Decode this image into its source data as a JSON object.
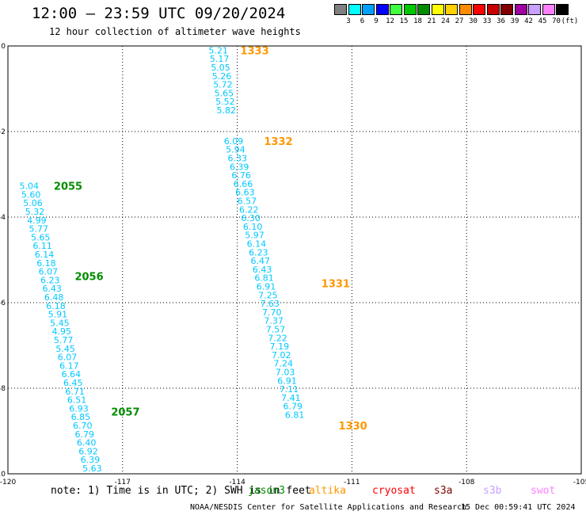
{
  "header": {
    "title": "12:00 — 23:59 UTC 09/20/2024",
    "subtitle": "12 hour collection of altimeter wave heights"
  },
  "legend": {
    "unit": "(ft)",
    "bins": [
      {
        "label": "3",
        "color": "#808080"
      },
      {
        "label": "6",
        "color": "#00ffff"
      },
      {
        "label": "9",
        "color": "#00a0ff"
      },
      {
        "label": "12",
        "color": "#0000ff"
      },
      {
        "label": "15",
        "color": "#40ff40"
      },
      {
        "label": "18",
        "color": "#00c800"
      },
      {
        "label": "21",
        "color": "#008c00"
      },
      {
        "label": "24",
        "color": "#ffff00"
      },
      {
        "label": "27",
        "color": "#ffd000"
      },
      {
        "label": "30",
        "color": "#ff8c00"
      },
      {
        "label": "33",
        "color": "#ff0000"
      },
      {
        "label": "36",
        "color": "#c80000"
      },
      {
        "label": "39",
        "color": "#800000"
      },
      {
        "label": "42",
        "color": "#a000a0"
      },
      {
        "label": "45",
        "color": "#c8a0ff"
      },
      {
        "label": "70",
        "color": "#ff80ff"
      },
      {
        "label": "",
        "color": "#000000"
      }
    ]
  },
  "map": {
    "axes": {
      "x_ticks": [
        {
          "v": -120,
          "label": "-120"
        },
        {
          "v": -117,
          "label": "-117"
        },
        {
          "v": -114,
          "label": "-114"
        },
        {
          "v": -111,
          "label": "-111"
        },
        {
          "v": -108,
          "label": "-108"
        },
        {
          "v": -105,
          "label": "-105"
        }
      ],
      "y_ticks": [
        {
          "v": 0,
          "label": "0"
        },
        {
          "v": -2,
          "label": "-2"
        },
        {
          "v": -4,
          "label": "-4"
        },
        {
          "v": -6,
          "label": "-6"
        },
        {
          "v": -8,
          "label": "-8"
        },
        {
          "v": -10,
          "label": "-10"
        }
      ],
      "xlim": [
        -120,
        -105
      ],
      "ylim": [
        -10,
        0
      ],
      "grid": true
    },
    "colors": {
      "value": "#00c8ff",
      "jason": "#008c00",
      "altika": "#ff9600"
    },
    "tracks": [
      {
        "sat": "jason",
        "label_color": "#008c00",
        "passes": [
          {
            "label": "2055",
            "lon": -118.8,
            "lat": -3.27
          },
          {
            "label": "2056",
            "lon": -118.25,
            "lat": -5.38
          },
          {
            "label": "2057",
            "lon": -117.3,
            "lat": -8.55
          }
        ],
        "points": [
          {
            "lon": -119.7,
            "lat": -3.27,
            "v": "5.04"
          },
          {
            "lon": -119.65,
            "lat": -3.47,
            "v": "5.60"
          },
          {
            "lon": -119.6,
            "lat": -3.67,
            "v": "5.06"
          },
          {
            "lon": -119.55,
            "lat": -3.87,
            "v": "5.32"
          },
          {
            "lon": -119.5,
            "lat": -4.07,
            "v": "4.99"
          },
          {
            "lon": -119.45,
            "lat": -4.27,
            "v": "5.77"
          },
          {
            "lon": -119.4,
            "lat": -4.47,
            "v": "5.65"
          },
          {
            "lon": -119.35,
            "lat": -4.67,
            "v": "6.11"
          },
          {
            "lon": -119.3,
            "lat": -4.87,
            "v": "6.14"
          },
          {
            "lon": -119.25,
            "lat": -5.07,
            "v": "6.18"
          },
          {
            "lon": -119.2,
            "lat": -5.27,
            "v": "6.07"
          },
          {
            "lon": -119.15,
            "lat": -5.47,
            "v": "6.23"
          },
          {
            "lon": -119.1,
            "lat": -5.67,
            "v": "6.43"
          },
          {
            "lon": -119.05,
            "lat": -5.87,
            "v": "6.48"
          },
          {
            "lon": -119.0,
            "lat": -6.07,
            "v": "6.18"
          },
          {
            "lon": -118.95,
            "lat": -6.27,
            "v": "5.91"
          },
          {
            "lon": -118.9,
            "lat": -6.47,
            "v": "5.45"
          },
          {
            "lon": -118.85,
            "lat": -6.67,
            "v": "4.95"
          },
          {
            "lon": -118.8,
            "lat": -6.87,
            "v": "5.77"
          },
          {
            "lon": -118.75,
            "lat": -7.07,
            "v": "5.45"
          },
          {
            "lon": -118.7,
            "lat": -7.27,
            "v": "6.07"
          },
          {
            "lon": -118.65,
            "lat": -7.47,
            "v": "6.17"
          },
          {
            "lon": -118.6,
            "lat": -7.67,
            "v": "6.64"
          },
          {
            "lon": -118.55,
            "lat": -7.87,
            "v": "6.45"
          },
          {
            "lon": -118.5,
            "lat": -8.07,
            "v": "6.71"
          },
          {
            "lon": -118.45,
            "lat": -8.27,
            "v": "6.51"
          },
          {
            "lon": -118.4,
            "lat": -8.47,
            "v": "6.93"
          },
          {
            "lon": -118.35,
            "lat": -8.67,
            "v": "6.85"
          },
          {
            "lon": -118.3,
            "lat": -8.87,
            "v": "6.70"
          },
          {
            "lon": -118.25,
            "lat": -9.07,
            "v": "6.79"
          },
          {
            "lon": -118.2,
            "lat": -9.27,
            "v": "6.40"
          },
          {
            "lon": -118.15,
            "lat": -9.47,
            "v": "6.92"
          },
          {
            "lon": -118.1,
            "lat": -9.67,
            "v": "6.39"
          },
          {
            "lon": -118.05,
            "lat": -9.87,
            "v": "5.63"
          }
        ]
      },
      {
        "sat": "altika",
        "label_color": "#ff9600",
        "passes": [
          {
            "label": "1333",
            "lon": -113.92,
            "lat": -0.1
          },
          {
            "label": "1332",
            "lon": -113.3,
            "lat": -2.22
          },
          {
            "label": "1331",
            "lon": -111.8,
            "lat": -5.55
          },
          {
            "label": "1330",
            "lon": -111.35,
            "lat": -8.87
          }
        ],
        "points": [
          {
            "lon": -114.75,
            "lat": -0.1,
            "v": "5.21"
          },
          {
            "lon": -114.72,
            "lat": -0.3,
            "v": "5.17"
          },
          {
            "lon": -114.69,
            "lat": -0.5,
            "v": "5.05"
          },
          {
            "lon": -114.66,
            "lat": -0.7,
            "v": "5.26"
          },
          {
            "lon": -114.63,
            "lat": -0.9,
            "v": "5.72"
          },
          {
            "lon": -114.6,
            "lat": -1.1,
            "v": "5.65"
          },
          {
            "lon": -114.57,
            "lat": -1.3,
            "v": "5.52"
          },
          {
            "lon": -114.54,
            "lat": -1.5,
            "v": "5.82"
          },
          {
            "lon": -114.35,
            "lat": -2.22,
            "v": "6.09"
          },
          {
            "lon": -114.3,
            "lat": -2.42,
            "v": "5.94"
          },
          {
            "lon": -114.25,
            "lat": -2.62,
            "v": "6.33"
          },
          {
            "lon": -114.2,
            "lat": -2.82,
            "v": "6.39"
          },
          {
            "lon": -114.15,
            "lat": -3.02,
            "v": "6.76"
          },
          {
            "lon": -114.1,
            "lat": -3.22,
            "v": "6.66"
          },
          {
            "lon": -114.05,
            "lat": -3.42,
            "v": "6.63"
          },
          {
            "lon": -114.0,
            "lat": -3.62,
            "v": "6.57"
          },
          {
            "lon": -113.95,
            "lat": -3.82,
            "v": "6.22"
          },
          {
            "lon": -113.9,
            "lat": -4.02,
            "v": "6.30"
          },
          {
            "lon": -113.85,
            "lat": -4.22,
            "v": "6.10"
          },
          {
            "lon": -113.8,
            "lat": -4.42,
            "v": "5.97"
          },
          {
            "lon": -113.75,
            "lat": -4.62,
            "v": "6.14"
          },
          {
            "lon": -113.7,
            "lat": -4.82,
            "v": "6.23"
          },
          {
            "lon": -113.65,
            "lat": -5.02,
            "v": "6.47"
          },
          {
            "lon": -113.6,
            "lat": -5.22,
            "v": "6.43"
          },
          {
            "lon": -113.55,
            "lat": -5.42,
            "v": "6.81"
          },
          {
            "lon": -113.5,
            "lat": -5.62,
            "v": "6.91"
          },
          {
            "lon": -113.45,
            "lat": -5.82,
            "v": "7.25"
          },
          {
            "lon": -113.4,
            "lat": -6.02,
            "v": "7.63"
          },
          {
            "lon": -113.35,
            "lat": -6.22,
            "v": "7.70"
          },
          {
            "lon": -113.3,
            "lat": -6.42,
            "v": "7.37"
          },
          {
            "lon": -113.25,
            "lat": -6.62,
            "v": "7.57"
          },
          {
            "lon": -113.2,
            "lat": -6.82,
            "v": "7.22"
          },
          {
            "lon": -113.15,
            "lat": -7.02,
            "v": "7.19"
          },
          {
            "lon": -113.1,
            "lat": -7.22,
            "v": "7.02"
          },
          {
            "lon": -113.05,
            "lat": -7.42,
            "v": "7.24"
          },
          {
            "lon": -113.0,
            "lat": -7.62,
            "v": "7.03"
          },
          {
            "lon": -112.95,
            "lat": -7.82,
            "v": "6.91"
          },
          {
            "lon": -112.9,
            "lat": -8.02,
            "v": "7.11"
          },
          {
            "lon": -112.85,
            "lat": -8.22,
            "v": "7.41"
          },
          {
            "lon": -112.8,
            "lat": -8.42,
            "v": "6.79"
          },
          {
            "lon": -112.75,
            "lat": -8.62,
            "v": "6.81"
          }
        ]
      }
    ]
  },
  "footer": {
    "note": "note: 1) Time is in UTC; 2) SWH is in feet",
    "satellites": [
      {
        "name": "jason3",
        "color": "#008c00"
      },
      {
        "name": "altika",
        "color": "#ff9600"
      },
      {
        "name": "cryosat",
        "color": "#ff0000"
      },
      {
        "name": "s3a",
        "color": "#800000"
      },
      {
        "name": "s3b",
        "color": "#c8a0ff"
      },
      {
        "name": "swot",
        "color": "#ff80ff"
      }
    ],
    "credit": "NOAA/NESDIS Center for Satellite Applications and Research",
    "timestamp": "15 Dec 00:59:41 UTC 2024"
  }
}
